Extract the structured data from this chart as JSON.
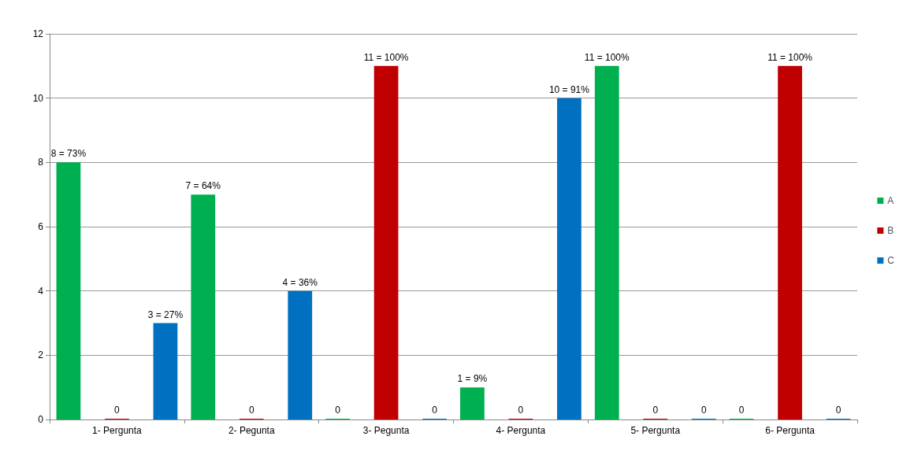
{
  "chart_data": {
    "type": "bar",
    "categories": [
      "1- Pergunta",
      "2- Pegunta",
      "3- Pegunta",
      "4- Pergunta",
      "5- Pergunta",
      "6- Pergunta"
    ],
    "series": [
      {
        "name": "A",
        "color": "#00b050",
        "values": [
          8,
          7,
          0,
          1,
          11,
          0
        ],
        "value_labels": [
          "8 = 73%",
          "7 = 64%",
          "0",
          "1 = 9%",
          "11 = 100%",
          "0"
        ]
      },
      {
        "name": "B",
        "color": "#c00000",
        "values": [
          0,
          0,
          11,
          0,
          0,
          11
        ],
        "value_labels": [
          "0",
          "0",
          "11 = 100%",
          "0",
          "0",
          "11 = 100%"
        ]
      },
      {
        "name": "C",
        "color": "#0070c0",
        "values": [
          3,
          4,
          0,
          10,
          0,
          0
        ],
        "value_labels": [
          "3 = 27%",
          "4 = 36%",
          "0",
          "10 = 91%",
          "0",
          "0"
        ]
      }
    ],
    "ylim": [
      0,
      12
    ],
    "yticks": [
      0,
      2,
      4,
      6,
      8,
      10,
      12
    ],
    "grid": "y",
    "legend": "right"
  }
}
